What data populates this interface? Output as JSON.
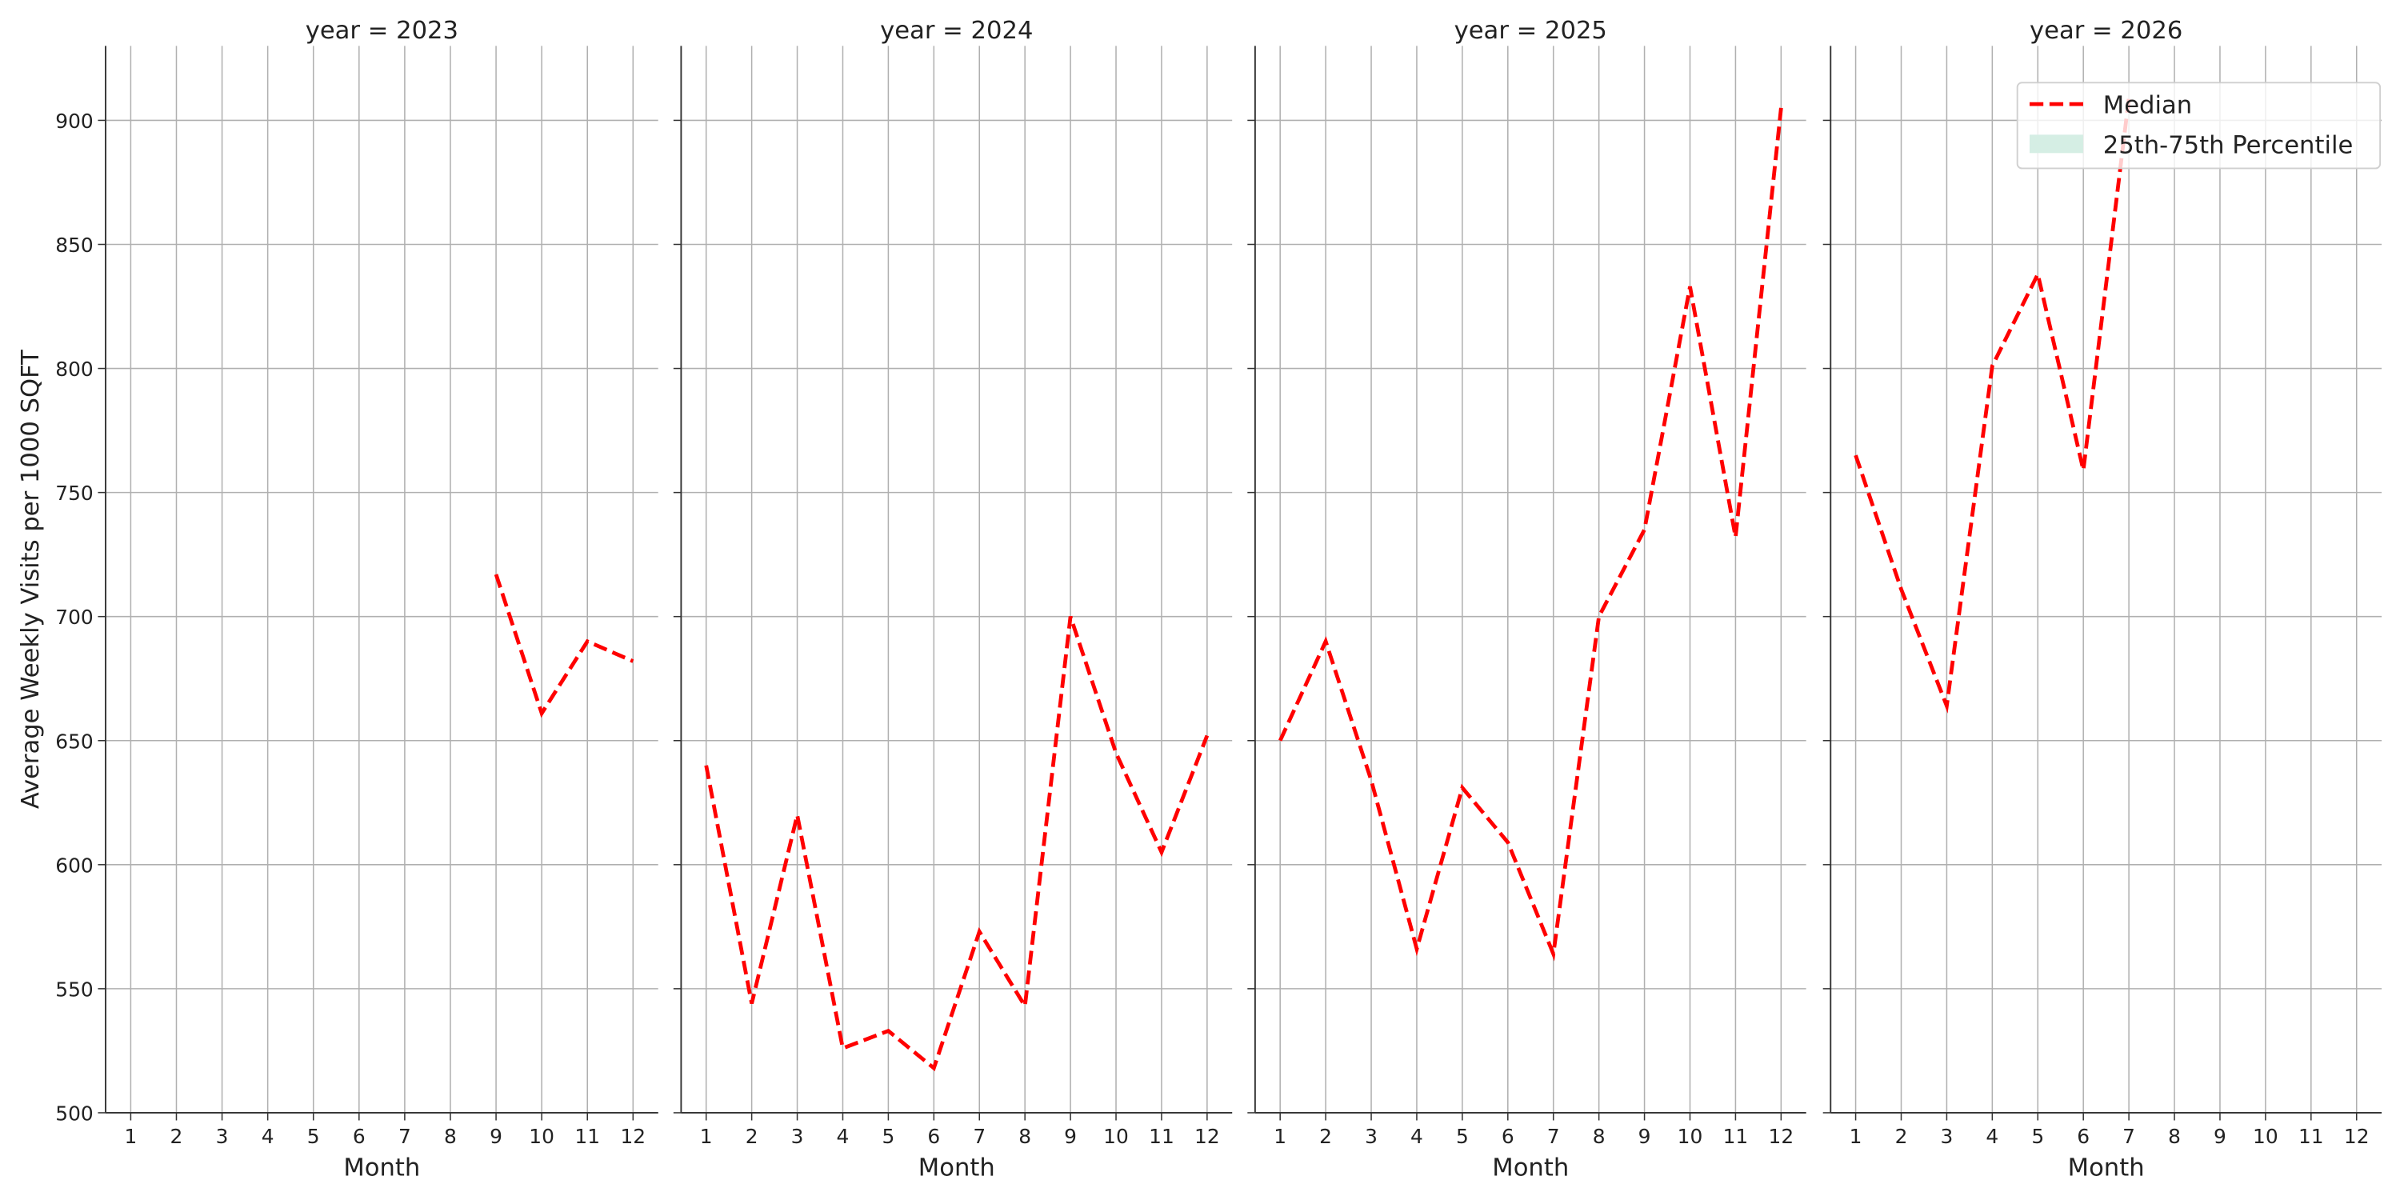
{
  "chart_data": [
    {
      "type": "line",
      "title": "year = 2023",
      "xlabel": "Month",
      "ylabel": "Average Weekly Visits per 1000 SQFT",
      "x": [
        1,
        2,
        3,
        4,
        5,
        6,
        7,
        8,
        9,
        10,
        11,
        12
      ],
      "series": [
        {
          "name": "Median",
          "color": "#ff0000",
          "style": "dashed",
          "values": [
            null,
            null,
            null,
            null,
            null,
            null,
            null,
            null,
            717,
            661,
            690,
            682
          ]
        }
      ],
      "xlim": [
        0.45,
        12.55
      ],
      "ylim": [
        500,
        930
      ],
      "xticks": [
        1,
        2,
        3,
        4,
        5,
        6,
        7,
        8,
        9,
        10,
        11,
        12
      ],
      "yticks": [
        500,
        550,
        600,
        650,
        700,
        750,
        800,
        850,
        900
      ],
      "grid": true
    },
    {
      "type": "line",
      "title": "year = 2024",
      "xlabel": "Month",
      "x": [
        1,
        2,
        3,
        4,
        5,
        6,
        7,
        8,
        9,
        10,
        11,
        12
      ],
      "series": [
        {
          "name": "Median",
          "color": "#ff0000",
          "style": "dashed",
          "values": [
            640,
            544,
            620,
            526,
            533,
            518,
            573,
            543,
            700,
            645,
            605,
            652
          ]
        }
      ],
      "xlim": [
        0.45,
        12.55
      ],
      "ylim": [
        500,
        930
      ],
      "xticks": [
        1,
        2,
        3,
        4,
        5,
        6,
        7,
        8,
        9,
        10,
        11,
        12
      ],
      "yticks": [
        500,
        550,
        600,
        650,
        700,
        750,
        800,
        850,
        900
      ],
      "grid": true
    },
    {
      "type": "line",
      "title": "year = 2025",
      "xlabel": "Month",
      "x": [
        1,
        2,
        3,
        4,
        5,
        6,
        7,
        8,
        9,
        10,
        11,
        12
      ],
      "series": [
        {
          "name": "Median",
          "color": "#ff0000",
          "style": "dashed",
          "values": [
            650,
            690,
            634,
            566,
            631,
            609,
            564,
            700,
            735,
            833,
            732,
            905
          ]
        }
      ],
      "xlim": [
        0.45,
        12.55
      ],
      "ylim": [
        500,
        930
      ],
      "xticks": [
        1,
        2,
        3,
        4,
        5,
        6,
        7,
        8,
        9,
        10,
        11,
        12
      ],
      "yticks": [
        500,
        550,
        600,
        650,
        700,
        750,
        800,
        850,
        900
      ],
      "grid": true
    },
    {
      "type": "line",
      "title": "year = 2026",
      "xlabel": "Month",
      "x": [
        1,
        2,
        3,
        4,
        5,
        6,
        7,
        8,
        9,
        10,
        11,
        12
      ],
      "series": [
        {
          "name": "Median",
          "color": "#ff0000",
          "style": "dashed",
          "values": [
            765,
            711,
            664,
            801,
            838,
            759,
            909,
            null,
            null,
            null,
            null,
            null
          ]
        },
        {
          "name": "25th-75th Percentile",
          "color": "#d5eee4",
          "style": "band"
        }
      ],
      "xlim": [
        0.45,
        12.55
      ],
      "ylim": [
        500,
        930
      ],
      "xticks": [
        1,
        2,
        3,
        4,
        5,
        6,
        7,
        8,
        9,
        10,
        11,
        12
      ],
      "yticks": [
        500,
        550,
        600,
        650,
        700,
        750,
        800,
        850,
        900
      ],
      "grid": true,
      "legend": "upper right"
    }
  ]
}
